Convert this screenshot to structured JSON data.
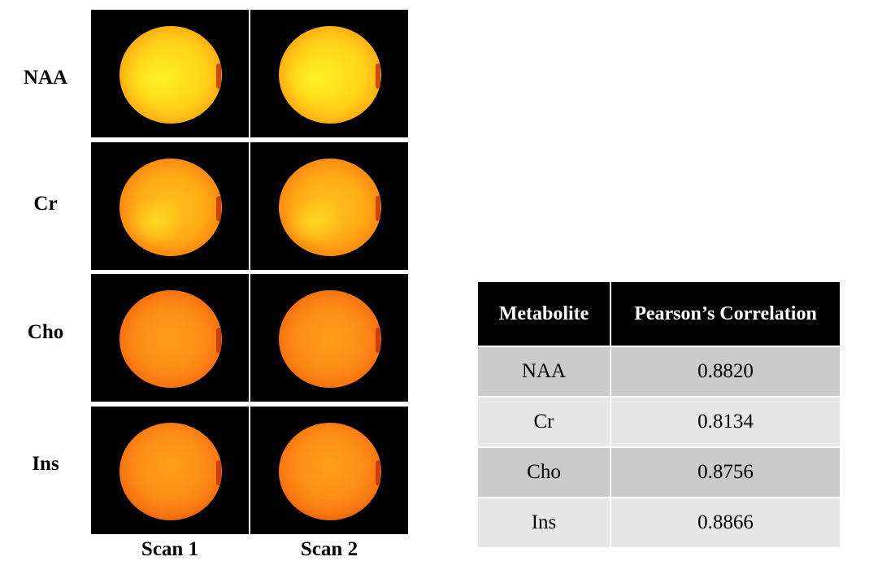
{
  "rows": [
    {
      "label": "NAA"
    },
    {
      "label": "Cr"
    },
    {
      "label": "Cho"
    },
    {
      "label": "Ins"
    }
  ],
  "columns": [
    {
      "label": "Scan 1"
    },
    {
      "label": "Scan 2"
    }
  ],
  "table": {
    "headers": [
      "Metabolite",
      "Pearson’s Correlation"
    ],
    "rows": [
      {
        "metabolite": "NAA",
        "correlation": "0.8820"
      },
      {
        "metabolite": "Cr",
        "correlation": "0.8134"
      },
      {
        "metabolite": "Cho",
        "correlation": "0.8756"
      },
      {
        "metabolite": "Ins",
        "correlation": "0.8866"
      }
    ]
  },
  "colors": {
    "map_background": "#020202",
    "table_header_bg": "#000000",
    "table_row_dark": "#cbcbcb",
    "table_row_light": "#e7e7e7"
  }
}
